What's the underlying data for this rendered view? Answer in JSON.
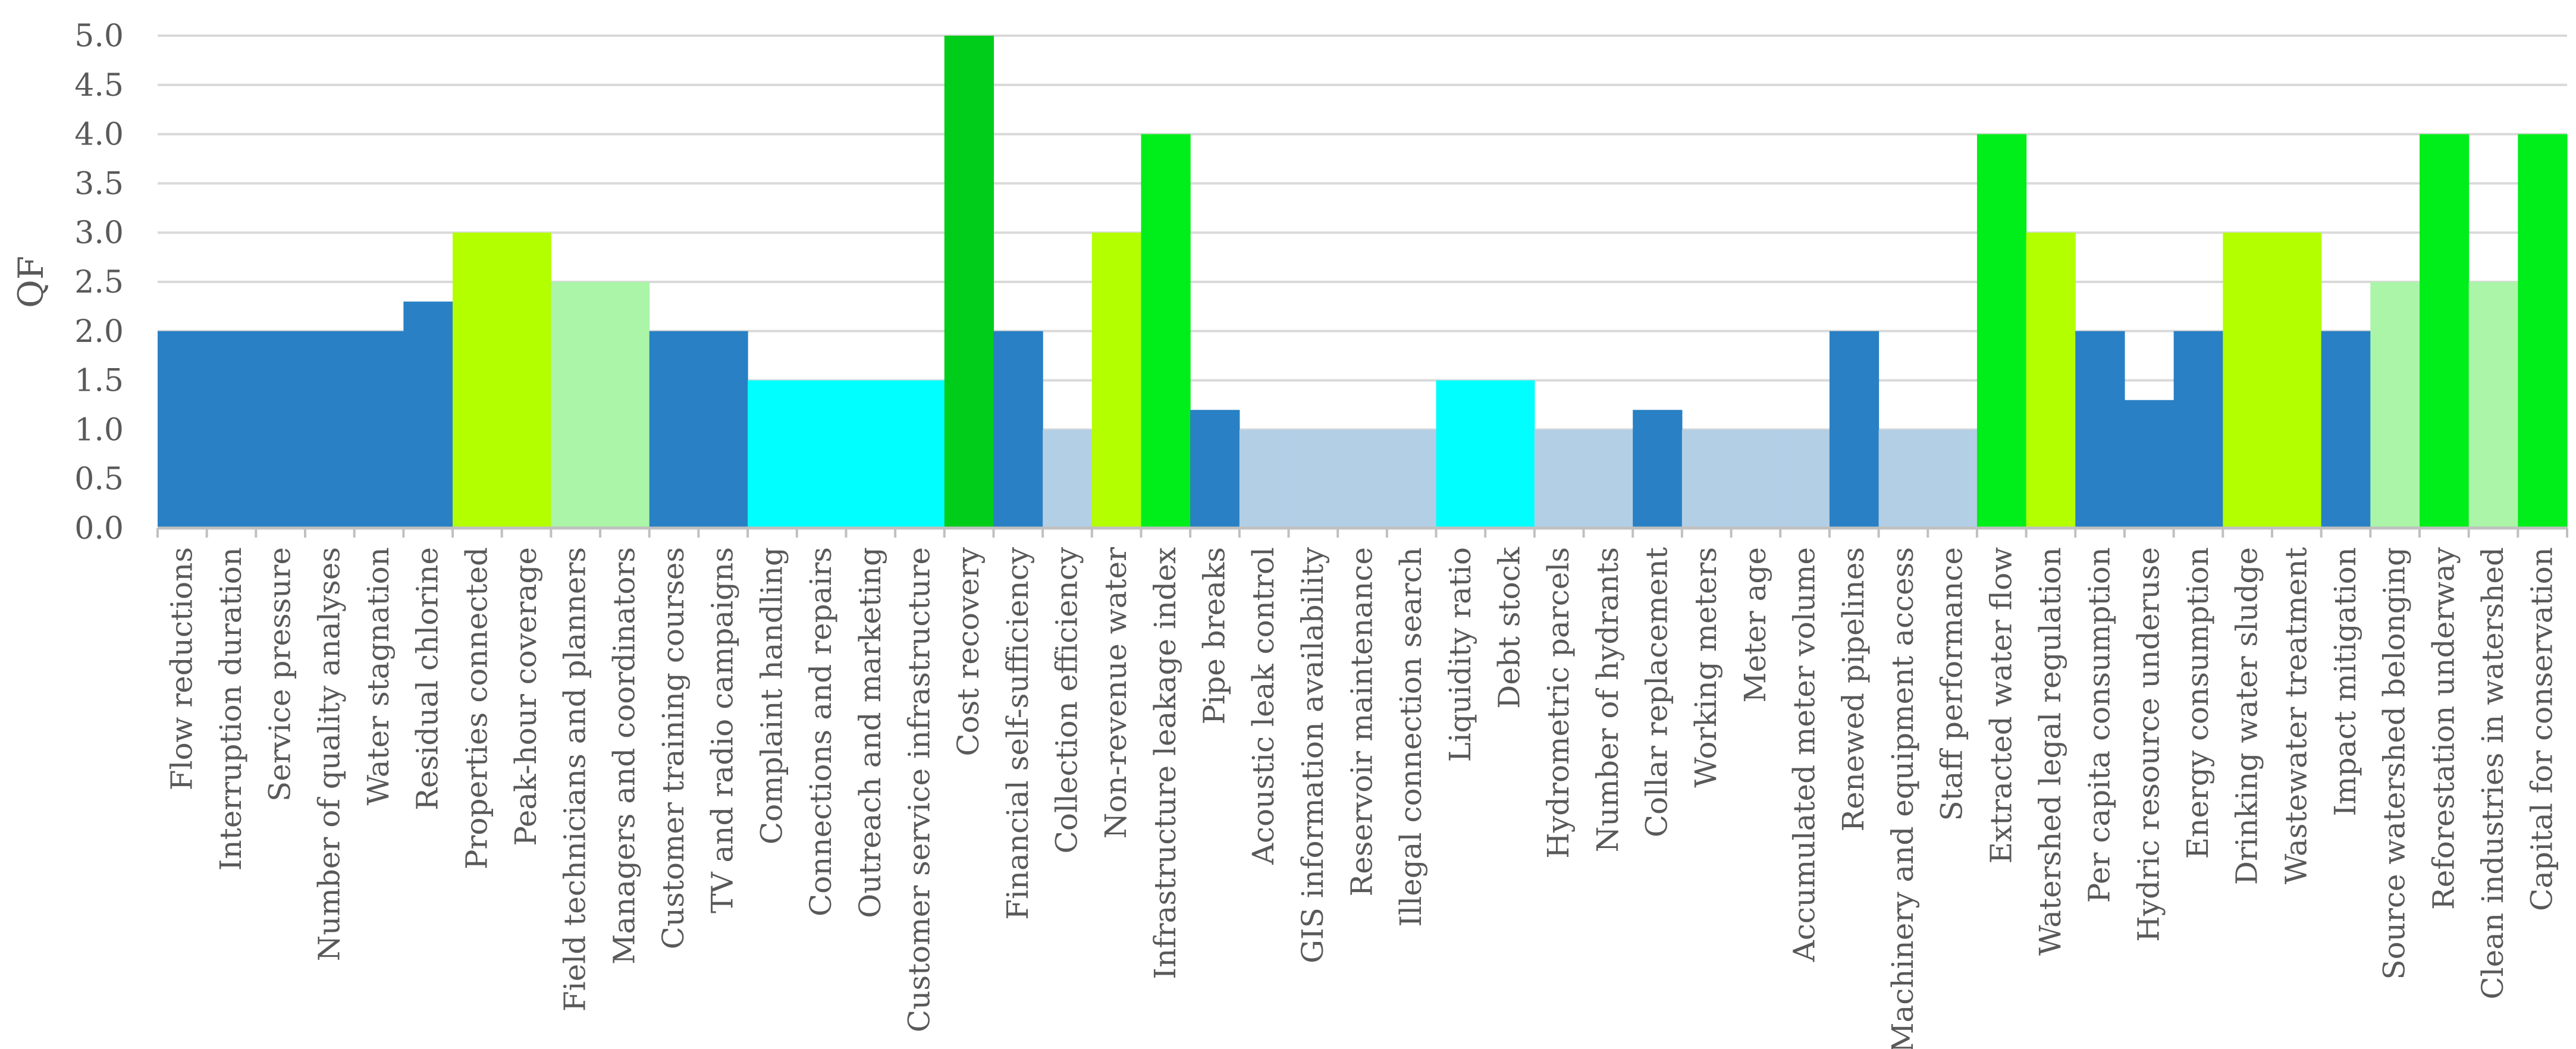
{
  "chart_data": {
    "type": "bar",
    "title": "",
    "xlabel": "",
    "ylabel": "QF",
    "ylim": [
      0,
      5
    ],
    "yticks": [
      "0.0",
      "0.5",
      "1.0",
      "1.5",
      "2.0",
      "2.5",
      "3.0",
      "3.5",
      "4.0",
      "4.5",
      "5.0"
    ],
    "grid": true,
    "legend": "none",
    "categories": [
      "Flow reductions",
      "Interruption duration",
      "Service pressure",
      "Number of quality analyses",
      "Water stagnation",
      "Residual chlorine",
      "Properties connected",
      "Peak-hour coverage",
      "Field technicians and planners",
      "Managers and coordinators",
      "Customer training courses",
      "TV and radio campaigns",
      "Complaint handling",
      "Connections and repairs",
      "Outreach and marketing",
      "Customer service infrastructure",
      "Cost recovery",
      "Financial self-sufficiency",
      "Collection efficiency",
      "Non-revenue water",
      "Infrastructure leakage index",
      "Pipe breaks",
      "Acoustic leak control",
      "GIS information availability",
      "Reservoir maintenance",
      "Illegal connection search",
      "Liquidity ratio",
      "Debt stock",
      "Hydrometric parcels",
      "Number of hydrants",
      "Collar replacement",
      "Working meters",
      "Meter age",
      "Accumulated meter volume",
      "Renewed pipelines",
      "Machinery and equipment access",
      "Staff performance",
      "Extracted water flow",
      "Watershed legal regulation",
      "Per capita consumption",
      "Hydric resource underuse",
      "Energy consumption",
      "Drinking water sludge",
      "Wastewater treatment",
      "Impact mitigation",
      "Source watershed belonging",
      "Reforestation underway",
      "Clean industries in watershed",
      "Capital for conservation"
    ],
    "values": [
      2.0,
      2.0,
      2.0,
      2.0,
      2.0,
      2.3,
      3.0,
      3.0,
      2.5,
      2.5,
      2.0,
      2.0,
      1.5,
      1.5,
      1.5,
      1.5,
      5.0,
      2.0,
      1.0,
      3.0,
      4.0,
      1.2,
      1.0,
      1.0,
      1.0,
      1.0,
      1.5,
      1.5,
      1.0,
      1.0,
      1.2,
      1.0,
      1.0,
      1.0,
      2.0,
      1.0,
      1.0,
      4.0,
      3.0,
      2.0,
      1.3,
      2.0,
      3.0,
      3.0,
      2.0,
      2.5,
      4.0,
      2.5,
      4.0
    ],
    "colors": [
      "#2980c4",
      "#2980c4",
      "#2980c4",
      "#2980c4",
      "#2980c4",
      "#2980c4",
      "#b3ff00",
      "#b3ff00",
      "#abf5a8",
      "#abf5a8",
      "#2980c4",
      "#2980c4",
      "#00ffff",
      "#00ffff",
      "#00ffff",
      "#00ffff",
      "#00cc1a",
      "#2980c4",
      "#b3cfe6",
      "#b3ff00",
      "#00ee1a",
      "#2980c4",
      "#b3cfe6",
      "#b3cfe6",
      "#b3cfe6",
      "#b3cfe6",
      "#00ffff",
      "#00ffff",
      "#b3cfe6",
      "#b3cfe6",
      "#2980c4",
      "#b3cfe6",
      "#b3cfe6",
      "#b3cfe6",
      "#2980c4",
      "#b3cfe6",
      "#b3cfe6",
      "#00ee1a",
      "#b3ff00",
      "#2980c4",
      "#2980c4",
      "#2980c4",
      "#b3ff00",
      "#b3ff00",
      "#2980c4",
      "#abf5a8",
      "#00ee1a",
      "#abf5a8",
      "#00ee1a"
    ]
  }
}
